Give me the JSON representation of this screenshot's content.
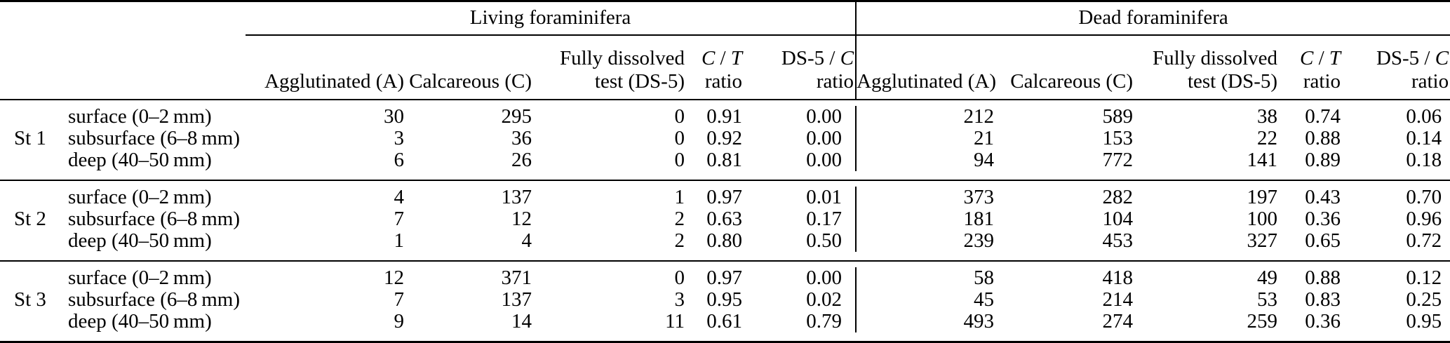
{
  "page": {
    "background": "#ffffff",
    "text_color": "#000000",
    "rule_color": "#000000"
  },
  "table": {
    "group_headers": {
      "living": "Living foraminifera",
      "dead": "Dead foraminifera"
    },
    "column_headers": {
      "agglutinated": "Agglutinated (A)",
      "calcareous": "Calcareous (C)",
      "fully_dissolved_line1": "Fully dissolved",
      "fully_dissolved_line2": "test (DS-5)",
      "ct_numerator": "C",
      "ct_slash": " / ",
      "ct_denominator": "T",
      "ct_line2": "ratio",
      "ds5c_prefix": "DS-5 / ",
      "ds5c_c": "C",
      "ds5c_line2": "ratio"
    },
    "stations": [
      {
        "label": "St 1",
        "rows": [
          {
            "depth": "surface (0–2 mm)",
            "living": [
              "30",
              "295",
              "0",
              "0.91",
              "0.00"
            ],
            "dead": [
              "212",
              "589",
              "38",
              "0.74",
              "0.06"
            ]
          },
          {
            "depth": "subsurface (6–8 mm)",
            "living": [
              "3",
              "36",
              "0",
              "0.92",
              "0.00"
            ],
            "dead": [
              "21",
              "153",
              "22",
              "0.88",
              "0.14"
            ]
          },
          {
            "depth": "deep (40–50 mm)",
            "living": [
              "6",
              "26",
              "0",
              "0.81",
              "0.00"
            ],
            "dead": [
              "94",
              "772",
              "141",
              "0.89",
              "0.18"
            ]
          }
        ]
      },
      {
        "label": "St 2",
        "rows": [
          {
            "depth": "surface (0–2 mm)",
            "living": [
              "4",
              "137",
              "1",
              "0.97",
              "0.01"
            ],
            "dead": [
              "373",
              "282",
              "197",
              "0.43",
              "0.70"
            ]
          },
          {
            "depth": "subsurface (6–8 mm)",
            "living": [
              "7",
              "12",
              "2",
              "0.63",
              "0.17"
            ],
            "dead": [
              "181",
              "104",
              "100",
              "0.36",
              "0.96"
            ]
          },
          {
            "depth": "deep (40–50 mm)",
            "living": [
              "1",
              "4",
              "2",
              "0.80",
              "0.50"
            ],
            "dead": [
              "239",
              "453",
              "327",
              "0.65",
              "0.72"
            ]
          }
        ]
      },
      {
        "label": "St 3",
        "rows": [
          {
            "depth": "surface (0–2 mm)",
            "living": [
              "12",
              "371",
              "0",
              "0.97",
              "0.00"
            ],
            "dead": [
              "58",
              "418",
              "49",
              "0.88",
              "0.12"
            ]
          },
          {
            "depth": "subsurface (6–8 mm)",
            "living": [
              "7",
              "137",
              "3",
              "0.95",
              "0.02"
            ],
            "dead": [
              "45",
              "214",
              "53",
              "0.83",
              "0.25"
            ]
          },
          {
            "depth": "deep (40–50 mm)",
            "living": [
              "9",
              "14",
              "11",
              "0.61",
              "0.79"
            ],
            "dead": [
              "493",
              "274",
              "259",
              "0.36",
              "0.95"
            ]
          }
        ]
      }
    ]
  }
}
